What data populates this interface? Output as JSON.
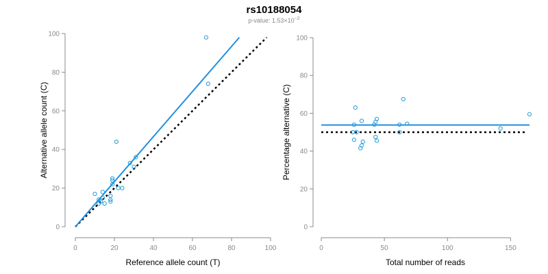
{
  "figure": {
    "title": "rs10188054",
    "subtitle_prefix": "p-value: 1.53×10",
    "subtitle_exponent": "−2"
  },
  "chart_data": [
    {
      "type": "scatter",
      "xlabel": "Reference allele count (T)",
      "ylabel": "Alternative allele count (C)",
      "xlim": [
        0,
        100
      ],
      "ylim": [
        0,
        100
      ],
      "xticks": [
        0,
        20,
        40,
        60,
        80,
        100
      ],
      "yticks": [
        0,
        20,
        40,
        60,
        80,
        100
      ],
      "point_color": "#1f9bd6",
      "fit_color": "#1f8ee0",
      "reference_color": "#000000",
      "points": [
        {
          "x": 67,
          "y": 98
        },
        {
          "x": 68,
          "y": 74
        },
        {
          "x": 21,
          "y": 44
        },
        {
          "x": 28,
          "y": 33
        },
        {
          "x": 31,
          "y": 36
        },
        {
          "x": 30,
          "y": 31
        },
        {
          "x": 19,
          "y": 25
        },
        {
          "x": 19,
          "y": 24
        },
        {
          "x": 19,
          "y": 22
        },
        {
          "x": 22,
          "y": 20
        },
        {
          "x": 24,
          "y": 20
        },
        {
          "x": 10,
          "y": 17
        },
        {
          "x": 14,
          "y": 18
        },
        {
          "x": 18,
          "y": 16
        },
        {
          "x": 18,
          "y": 14
        },
        {
          "x": 18,
          "y": 13
        },
        {
          "x": 12,
          "y": 14
        },
        {
          "x": 12,
          "y": 12
        },
        {
          "x": 13,
          "y": 13
        },
        {
          "x": 15,
          "y": 12
        },
        {
          "x": 14,
          "y": 15
        }
      ],
      "fit_line": {
        "x": [
          0,
          84
        ],
        "y": [
          0,
          98
        ]
      },
      "reference_line": {
        "x": [
          0,
          98
        ],
        "y": [
          0,
          98
        ]
      }
    },
    {
      "type": "scatter",
      "xlabel": "Total number of reads",
      "ylabel": "Percentage alternative (C)",
      "xlim": [
        0,
        165
      ],
      "ylim": [
        0,
        100
      ],
      "xticks": [
        0,
        50,
        100,
        150
      ],
      "yticks": [
        0,
        20,
        40,
        60,
        80,
        100
      ],
      "point_color": "#1f9bd6",
      "fit_color": "#1f8ee0",
      "reference_color": "#000000",
      "points": [
        {
          "x": 165,
          "y": 59.5
        },
        {
          "x": 65,
          "y": 67.5
        },
        {
          "x": 27,
          "y": 63
        },
        {
          "x": 32,
          "y": 56
        },
        {
          "x": 44,
          "y": 57
        },
        {
          "x": 43,
          "y": 55.5
        },
        {
          "x": 42,
          "y": 54
        },
        {
          "x": 26,
          "y": 54
        },
        {
          "x": 68,
          "y": 54.5
        },
        {
          "x": 62,
          "y": 54
        },
        {
          "x": 142,
          "y": 52
        },
        {
          "x": 25,
          "y": 50
        },
        {
          "x": 28,
          "y": 50
        },
        {
          "x": 62,
          "y": 50
        },
        {
          "x": 43,
          "y": 47.5
        },
        {
          "x": 26,
          "y": 46
        },
        {
          "x": 33,
          "y": 45
        },
        {
          "x": 44,
          "y": 45.5
        },
        {
          "x": 32,
          "y": 43
        },
        {
          "x": 31,
          "y": 41.5
        }
      ],
      "fit_line": {
        "x": [
          0,
          165
        ],
        "y": [
          53.8,
          53.8
        ]
      },
      "reference_line": {
        "x": [
          0,
          162
        ],
        "y": [
          50,
          50
        ]
      }
    }
  ]
}
